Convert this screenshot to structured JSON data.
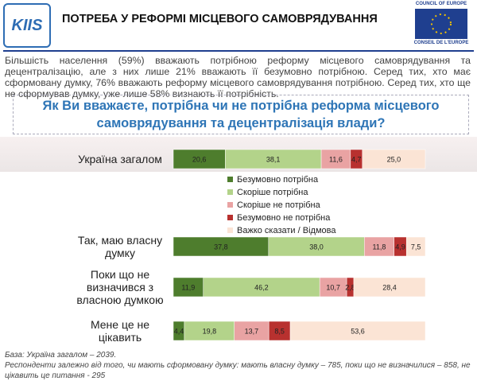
{
  "header": {
    "logo": "KIIS",
    "title": "ПОТРЕБА У РЕФОРМІ МІСЦЕВОГО САМОВРЯДУВАННЯ",
    "partner_top": "COUNCIL OF EUROPE",
    "partner_bottom": "CONSEIL DE L'EUROPE"
  },
  "intro": "Більшість населення (59%) вважають потрібною реформу місцевого самоврядування та децентралізацію, але з них лише 21% вважають її безумовно потрібною. Серед тих, хто має сформовану думку, 76% вважають реформу місцевого самоврядування потрібною. Серед тих, хто ще не сформував думку, уже лише 58% визнають її потрібність.",
  "chart_data": {
    "type": "stacked-bar-horizontal",
    "title": "Як Ви вважаєте, потрібна чи не потрібна реформа місцевого самоврядування та децентралізація влади?",
    "categories": [
      "Україна загалом",
      "Так, маю власну думку",
      "Поки що не визначився з власною думкою",
      "Мене це не цікавить"
    ],
    "xlim": [
      0,
      100
    ],
    "series": [
      {
        "name": "Безумовно потрібна",
        "color": "#4e7d2d",
        "values": [
          20.6,
          37.8,
          11.9,
          4.4
        ],
        "value_labels": [
          "20,6",
          "37,8",
          "11,9",
          "4,4"
        ]
      },
      {
        "name": "Скоріше потрібна",
        "color": "#b3d38a",
        "values": [
          38.1,
          38.0,
          46.2,
          19.8
        ],
        "value_labels": [
          "38,1",
          "38,0",
          "46,2",
          "19,8"
        ]
      },
      {
        "name": "Скоріше не потрібна",
        "color": "#e9a3a3",
        "values": [
          11.6,
          11.8,
          10.7,
          13.7
        ],
        "value_labels": [
          "11,6",
          "11,8",
          "10,7",
          "13,7"
        ]
      },
      {
        "name": "Безумовно не потрібна",
        "color": "#b8312f",
        "values": [
          4.7,
          4.9,
          2.8,
          8.5
        ],
        "value_labels": [
          "4,7",
          "4,9",
          "2,8",
          "8,5"
        ]
      },
      {
        "name": "Важко сказати / Відмова",
        "color": "#fbe4d5",
        "values": [
          25.0,
          7.5,
          28.4,
          53.6
        ],
        "value_labels": [
          "25,0",
          "7,5",
          "28,4",
          "53,6"
        ]
      }
    ]
  },
  "footnotes": [
    "База: Україна загалом – 2039.",
    "Респонденти залежно від того, чи мають сформовану думку: мають власну думку – 785, поки що не визначилися – 858, не цікавить це питання - 295"
  ]
}
